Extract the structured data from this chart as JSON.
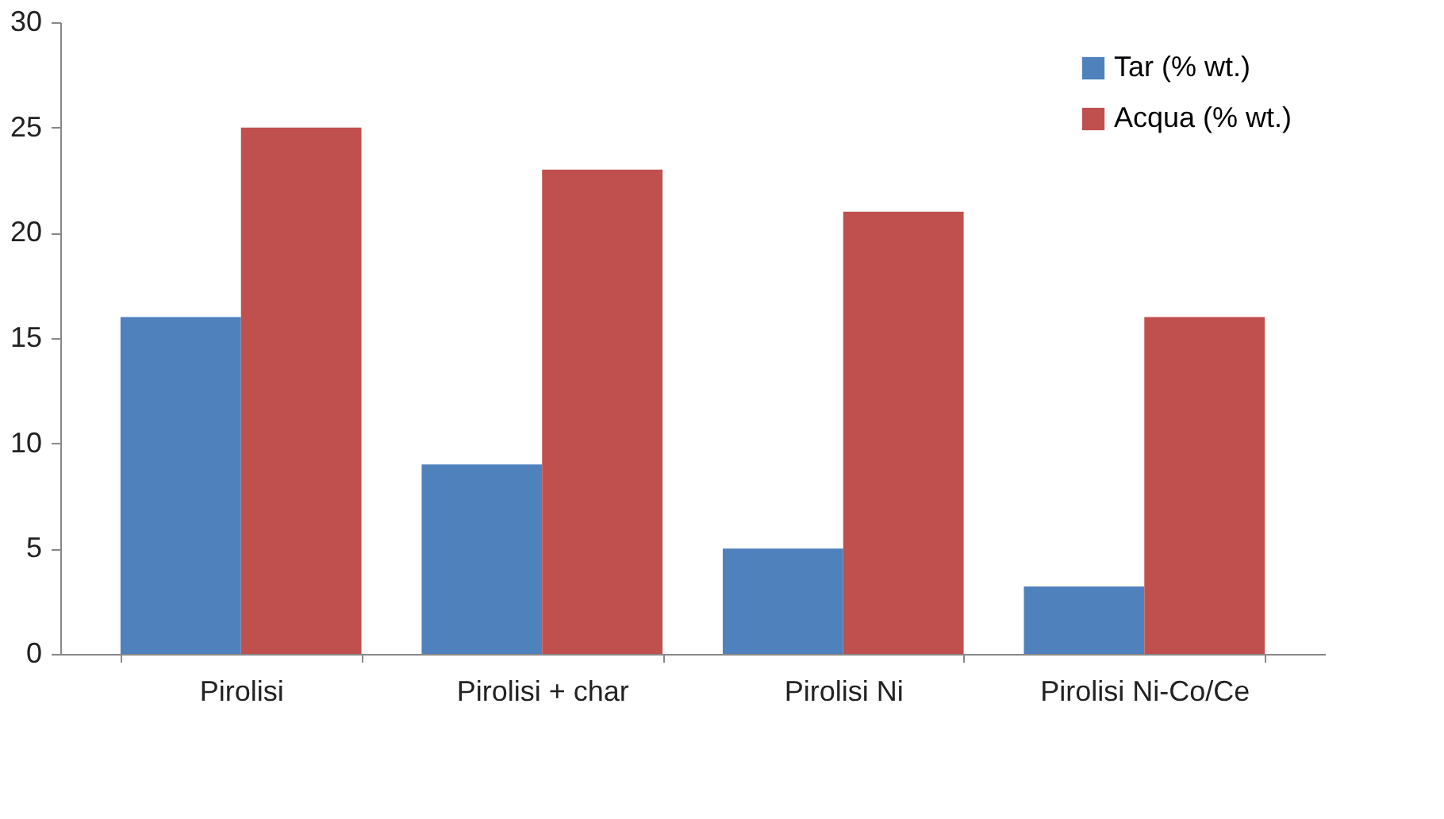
{
  "chart_data": {
    "type": "bar",
    "categories": [
      "Pirolisi",
      "Pirolisi + char",
      "Pirolisi Ni",
      "Pirolisi Ni-Co/Ce"
    ],
    "series": [
      {
        "name": "Tar (% wt.)",
        "color": "#4f81bd",
        "values": [
          16,
          9,
          5,
          3.2
        ]
      },
      {
        "name": "Acqua (% wt.)",
        "color": "#c0504d",
        "values": [
          25,
          23,
          21,
          16
        ]
      }
    ],
    "ylim": [
      0,
      30
    ],
    "yticks": [
      0,
      5,
      10,
      15,
      20,
      25,
      30
    ],
    "grid": false,
    "legend": "top right"
  }
}
